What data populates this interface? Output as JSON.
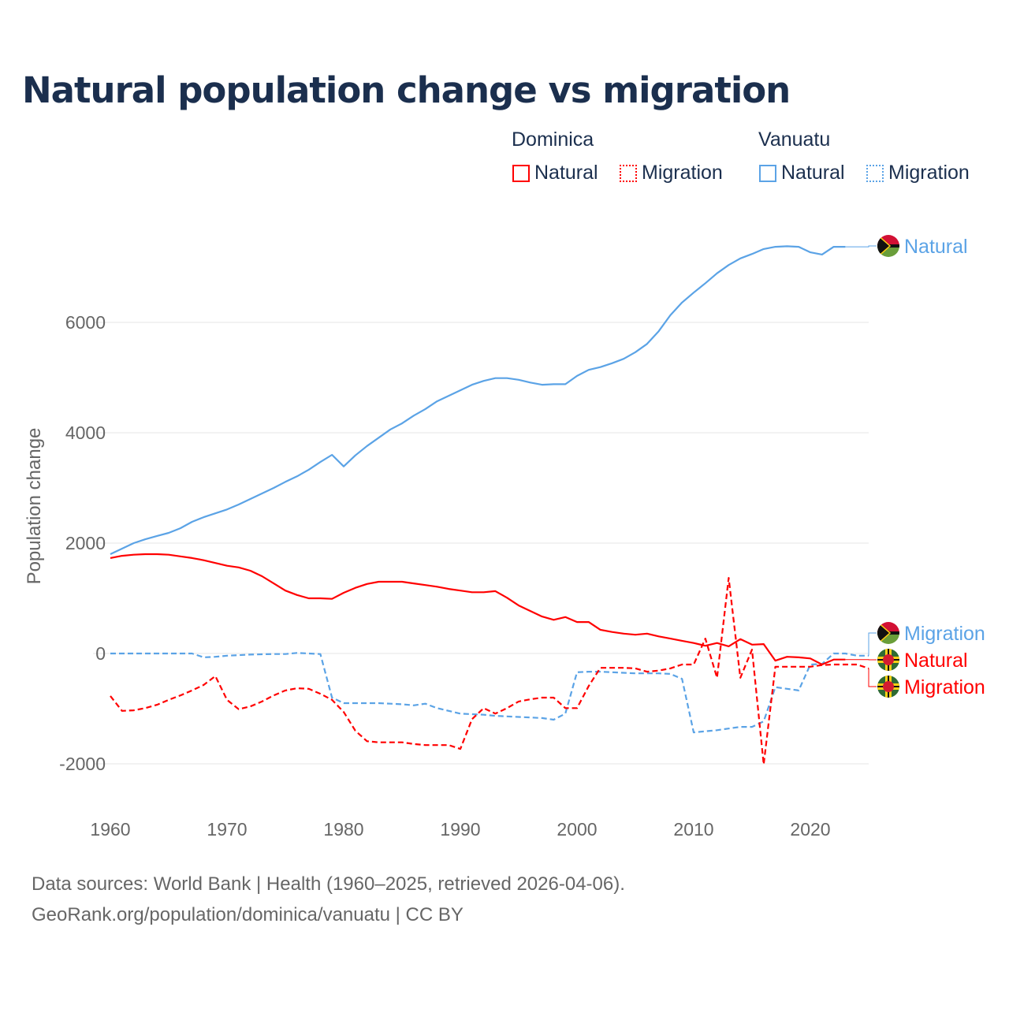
{
  "title": "Natural population change vs migration",
  "legend": {
    "groups": [
      {
        "name": "Dominica",
        "items": [
          "Natural",
          "Migration"
        ],
        "color": "#ff0000"
      },
      {
        "name": "Vanuatu",
        "items": [
          "Natural",
          "Migration"
        ],
        "color": "#5ba3e6"
      }
    ]
  },
  "source_lines": [
    "Data sources: World Bank | Health (1960–2025, retrieved 2026-04-06).",
    "GeoRank.org/population/dominica/vanuatu | CC BY"
  ],
  "chart_data": {
    "type": "line",
    "title": "Natural population change vs migration",
    "xlabel": "",
    "ylabel": "Population change",
    "xlim": [
      1960,
      2025
    ],
    "ylim": [
      -2400,
      7900
    ],
    "yticks": [
      -2000,
      0,
      2000,
      4000,
      6000
    ],
    "xticks": [
      1960,
      1970,
      1980,
      1990,
      2000,
      2010,
      2020
    ],
    "grid": true,
    "series": [
      {
        "name": "Vanuatu Natural",
        "label": "Natural",
        "color": "#5ba3e6",
        "dash": false,
        "flag": "vanuatu",
        "x0": 1960,
        "values": [
          1800,
          1900,
          2000,
          2070,
          2130,
          2185,
          2270,
          2385,
          2470,
          2540,
          2610,
          2700,
          2800,
          2900,
          3000,
          3110,
          3210,
          3330,
          3470,
          3600,
          3390,
          3590,
          3760,
          3910,
          4060,
          4170,
          4310,
          4430,
          4570,
          4670,
          4770,
          4870,
          4940,
          4990,
          4990,
          4960,
          4910,
          4870,
          4880,
          4880,
          5030,
          5140,
          5190,
          5260,
          5340,
          5460,
          5610,
          5840,
          6130,
          6360,
          6540,
          6710,
          6890,
          7040,
          7160,
          7240,
          7330,
          7370,
          7380,
          7370,
          7270,
          7230,
          7370,
          7370
        ]
      },
      {
        "name": "Vanuatu Migration",
        "label": "Migration",
        "color": "#5ba3e6",
        "dash": true,
        "flag": "vanuatu",
        "x0": 1960,
        "values": [
          0,
          0,
          0,
          0,
          0,
          0,
          0,
          0,
          -70,
          -60,
          -40,
          -30,
          -20,
          -15,
          -10,
          -10,
          10,
          0,
          -10,
          -800,
          -900,
          -900,
          -900,
          -900,
          -910,
          -920,
          -940,
          -910,
          -990,
          -1040,
          -1090,
          -1100,
          -1110,
          -1130,
          -1140,
          -1150,
          -1160,
          -1170,
          -1200,
          -1090,
          -340,
          -330,
          -330,
          -340,
          -350,
          -360,
          -360,
          -360,
          -370,
          -460,
          -1430,
          -1410,
          -1390,
          -1360,
          -1330,
          -1330,
          -1230,
          -610,
          -640,
          -670,
          -200,
          -190,
          0,
          0,
          -40,
          -40
        ]
      },
      {
        "name": "Dominica Natural",
        "label": "Natural",
        "color": "#ff0000",
        "dash": false,
        "flag": "dominica",
        "x0": 1960,
        "values": [
          1730,
          1770,
          1790,
          1800,
          1800,
          1790,
          1760,
          1730,
          1690,
          1640,
          1590,
          1560,
          1500,
          1400,
          1270,
          1140,
          1060,
          1000,
          1000,
          990,
          1100,
          1190,
          1260,
          1300,
          1300,
          1300,
          1270,
          1240,
          1210,
          1170,
          1140,
          1110,
          1110,
          1130,
          1010,
          870,
          770,
          670,
          610,
          660,
          570,
          570,
          430,
          390,
          360,
          340,
          360,
          310,
          270,
          230,
          190,
          140,
          190,
          130,
          260,
          160,
          170,
          -130,
          -60,
          -70,
          -90,
          -200,
          -110,
          -110
        ]
      },
      {
        "name": "Dominica Migration",
        "label": "Migration",
        "color": "#ff0000",
        "dash": true,
        "flag": "dominica",
        "x0": 1960,
        "values": [
          -770,
          -1040,
          -1030,
          -990,
          -930,
          -840,
          -760,
          -670,
          -570,
          -410,
          -840,
          -1010,
          -960,
          -870,
          -760,
          -670,
          -630,
          -640,
          -730,
          -840,
          -1060,
          -1400,
          -1590,
          -1610,
          -1610,
          -1610,
          -1640,
          -1660,
          -1660,
          -1660,
          -1730,
          -1190,
          -990,
          -1090,
          -990,
          -870,
          -830,
          -800,
          -800,
          -990,
          -990,
          -590,
          -260,
          -260,
          -260,
          -270,
          -330,
          -310,
          -270,
          -200,
          -200,
          270,
          -440,
          1370,
          -440,
          70,
          -2010,
          -240,
          -240,
          -240,
          -240,
          -210,
          -200,
          -200,
          -200,
          -270
        ]
      }
    ]
  }
}
